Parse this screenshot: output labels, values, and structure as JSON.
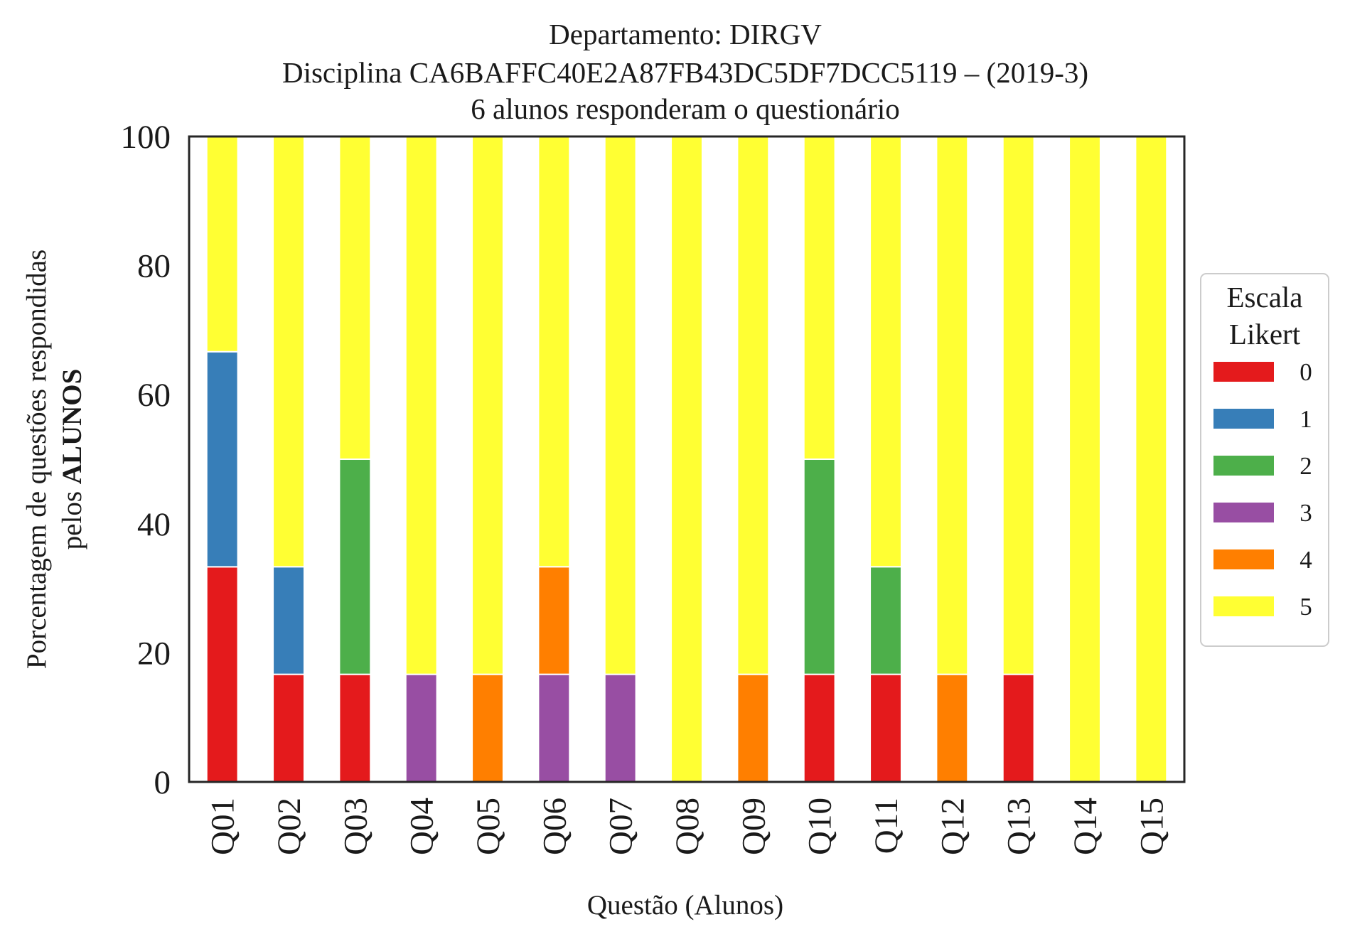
{
  "chart_data": {
    "type": "bar",
    "stacked": true,
    "title_lines": [
      "Departamento: DIRGV",
      "Disciplina CA6BAFFC40E2A87FB43DC5DF7DCC5119 – (2019-3)",
      "6 alunos responderam o questionário"
    ],
    "xlabel": "Questão (Alunos)",
    "ylabel_line1": "Porcentagem de questões respondidas",
    "ylabel_line2_prefix": "pelos ",
    "ylabel_line2_bold": "ALUNOS",
    "ylim": [
      0,
      100
    ],
    "yticks": [
      0,
      20,
      40,
      60,
      80,
      100
    ],
    "categories": [
      "Q01",
      "Q02",
      "Q03",
      "Q04",
      "Q05",
      "Q06",
      "Q07",
      "Q08",
      "Q09",
      "Q10",
      "Q11",
      "Q12",
      "Q13",
      "Q14",
      "Q15"
    ],
    "legend_title_lines": [
      "Escala",
      "Likert"
    ],
    "legend_position": "right",
    "grid": false,
    "series": [
      {
        "name": "0",
        "color": "#e41a1c",
        "values": [
          33.33,
          16.67,
          16.67,
          0,
          0,
          0,
          0,
          0,
          0,
          16.67,
          16.67,
          0,
          16.67,
          0,
          0
        ]
      },
      {
        "name": "1",
        "color": "#377eb8",
        "values": [
          33.33,
          16.67,
          0,
          0,
          0,
          0,
          0,
          0,
          0,
          0,
          0,
          0,
          0,
          0,
          0
        ]
      },
      {
        "name": "2",
        "color": "#4daf4a",
        "values": [
          0,
          0,
          33.33,
          0,
          0,
          0,
          0,
          0,
          0,
          33.33,
          16.67,
          0,
          0,
          0,
          0
        ]
      },
      {
        "name": "3",
        "color": "#984ea3",
        "values": [
          0,
          0,
          0,
          16.67,
          0,
          16.67,
          16.67,
          0,
          0,
          0,
          0,
          0,
          0,
          0,
          0
        ]
      },
      {
        "name": "4",
        "color": "#ff7f00",
        "values": [
          0,
          0,
          0,
          0,
          16.67,
          16.67,
          0,
          0,
          16.67,
          0,
          0,
          16.67,
          0,
          0,
          0
        ]
      },
      {
        "name": "5",
        "color": "#ffff33",
        "values": [
          33.33,
          66.67,
          50,
          83.33,
          83.33,
          66.67,
          83.33,
          100,
          83.33,
          50,
          66.67,
          83.33,
          83.33,
          100,
          100
        ]
      }
    ]
  }
}
